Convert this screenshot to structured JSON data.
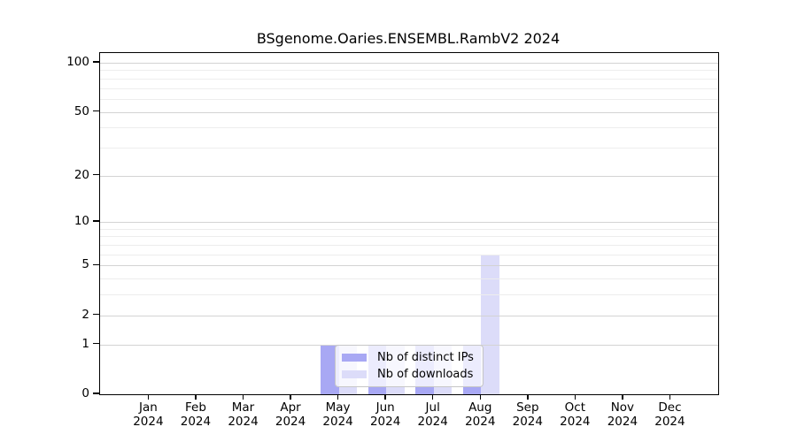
{
  "title": "BSgenome.Oaries.ENSEMBL.RambV2 2024",
  "chart_data": {
    "type": "bar",
    "title": "BSgenome.Oaries.ENSEMBL.RambV2 2024",
    "y_scale": "log10(value+1)",
    "ylim": [
      0,
      115
    ],
    "grid": true,
    "legend_position": "bottom-center-inside",
    "categories": [
      "Jan",
      "Feb",
      "Mar",
      "Apr",
      "May",
      "Jun",
      "Jul",
      "Aug",
      "Sep",
      "Oct",
      "Nov",
      "Dec"
    ],
    "category_year": "2024",
    "y_ticks": [
      0,
      1,
      2,
      5,
      10,
      20,
      50,
      100
    ],
    "y_minor_gridlines": [
      3,
      4,
      6,
      7,
      8,
      9,
      30,
      40,
      60,
      70,
      80,
      90
    ],
    "series": [
      {
        "name": "Nb of distinct IPs",
        "color": "#a8a8f4",
        "values": [
          0,
          0,
          0,
          0,
          1,
          1,
          1,
          1,
          0,
          0,
          0,
          0
        ]
      },
      {
        "name": "Nb of downloads",
        "color": "#dcdcf9",
        "values": [
          0,
          0,
          0,
          0,
          1,
          1,
          1,
          6,
          0,
          0,
          0,
          0
        ]
      }
    ]
  },
  "colors": {
    "background": "#ffffff",
    "axis": "#000000",
    "major_grid": "#d3d3d3",
    "minor_grid": "#ededed",
    "legend_border": "#c6c6c6"
  }
}
